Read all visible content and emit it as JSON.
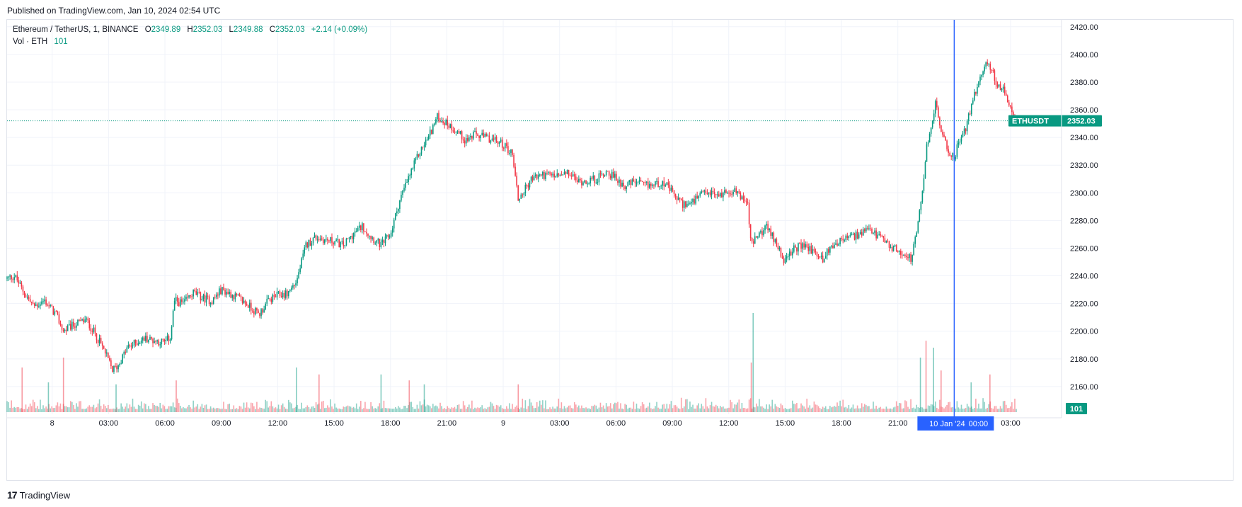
{
  "header": {
    "published": "Published on TradingView.com, Jan 10, 2024 02:54 UTC"
  },
  "legend": {
    "symbol": "Ethereum / TetherUS, 1, BINANCE",
    "open_label": "O",
    "open": "2349.89",
    "high_label": "H",
    "high": "2352.03",
    "low_label": "L",
    "low": "2349.88",
    "close_label": "C",
    "close": "2352.03",
    "change": "+2.14 (+0.09%)",
    "volume_label": "Vol · ETH",
    "volume": "101"
  },
  "footer": {
    "brand": "TradingView",
    "logo_mark": "17"
  },
  "colors": {
    "up": "#089981",
    "down": "#f23645",
    "crosshair": "#2962ff",
    "grid": "#f0f3fa",
    "axis_text": "#131722"
  },
  "chart_data": {
    "type": "candlestick",
    "symbol": "ETHUSDT",
    "ylim": [
      2140,
      2425
    ],
    "y_ticks": [
      "2420.00",
      "2400.00",
      "2380.00",
      "2360.00",
      "2340.00",
      "2320.00",
      "2300.00",
      "2280.00",
      "2260.00",
      "2240.00",
      "2220.00",
      "2200.00",
      "2180.00",
      "2160.00"
    ],
    "x_ticks": [
      {
        "hour": 3,
        "label": "8"
      },
      {
        "hour": 6,
        "label": "03:00"
      },
      {
        "hour": 9,
        "label": "06:00"
      },
      {
        "hour": 12,
        "label": "09:00"
      },
      {
        "hour": 15,
        "label": "12:00"
      },
      {
        "hour": 18,
        "label": "15:00"
      },
      {
        "hour": 21,
        "label": "18:00"
      },
      {
        "hour": 24,
        "label": "21:00"
      },
      {
        "hour": 27,
        "label": "9"
      },
      {
        "hour": 30,
        "label": "03:00"
      },
      {
        "hour": 33,
        "label": "06:00"
      },
      {
        "hour": 36,
        "label": "09:00"
      },
      {
        "hour": 39,
        "label": "12:00"
      },
      {
        "hour": 42,
        "label": "15:00"
      },
      {
        "hour": 45,
        "label": "18:00"
      },
      {
        "hour": 48,
        "label": "21:00"
      },
      {
        "hour": 54,
        "label": "03:00"
      }
    ],
    "xlim_hours": [
      0.6,
      54.3
    ],
    "last_price": 2352.03,
    "last_price_label": "ETHUSDT",
    "last_price_text": "2352.03",
    "volume_last": "101",
    "crosshair": {
      "hour": 51,
      "label_date": "10 Jan '24",
      "label_time": "00:00"
    },
    "price_path": [
      [
        0.6,
        2238
      ],
      [
        1.0,
        2240
      ],
      [
        1.5,
        2228
      ],
      [
        2.0,
        2218
      ],
      [
        2.6,
        2222
      ],
      [
        3.2,
        2212
      ],
      [
        3.6,
        2200
      ],
      [
        4.2,
        2205
      ],
      [
        4.8,
        2208
      ],
      [
        5.3,
        2198
      ],
      [
        5.8,
        2185
      ],
      [
        6.2,
        2172
      ],
      [
        6.5,
        2175
      ],
      [
        7.0,
        2188
      ],
      [
        7.5,
        2192
      ],
      [
        8.0,
        2195
      ],
      [
        8.5,
        2193
      ],
      [
        9.0,
        2192
      ],
      [
        9.3,
        2196
      ],
      [
        9.5,
        2222
      ],
      [
        10.0,
        2220
      ],
      [
        10.5,
        2228
      ],
      [
        11.0,
        2224
      ],
      [
        11.5,
        2222
      ],
      [
        12.0,
        2230
      ],
      [
        12.5,
        2227
      ],
      [
        13.0,
        2223
      ],
      [
        13.5,
        2218
      ],
      [
        14.0,
        2212
      ],
      [
        14.5,
        2222
      ],
      [
        15.0,
        2226
      ],
      [
        15.5,
        2227
      ],
      [
        16.0,
        2236
      ],
      [
        16.5,
        2262
      ],
      [
        17.0,
        2268
      ],
      [
        17.5,
        2266
      ],
      [
        18.0,
        2265
      ],
      [
        18.5,
        2262
      ],
      [
        19.0,
        2270
      ],
      [
        19.5,
        2276
      ],
      [
        20.0,
        2268
      ],
      [
        20.5,
        2262
      ],
      [
        21.0,
        2270
      ],
      [
        21.5,
        2295
      ],
      [
        22.0,
        2312
      ],
      [
        22.5,
        2328
      ],
      [
        23.0,
        2340
      ],
      [
        23.5,
        2355
      ],
      [
        24.0,
        2350
      ],
      [
        24.5,
        2345
      ],
      [
        25.0,
        2338
      ],
      [
        25.5,
        2342
      ],
      [
        26.0,
        2340
      ],
      [
        26.5,
        2338
      ],
      [
        27.0,
        2335
      ],
      [
        27.5,
        2328
      ],
      [
        27.8,
        2295
      ],
      [
        28.5,
        2310
      ],
      [
        29.0,
        2313
      ],
      [
        30.0,
        2312
      ],
      [
        30.5,
        2314
      ],
      [
        31.0,
        2308
      ],
      [
        32.0,
        2310
      ],
      [
        32.5,
        2316
      ],
      [
        33.0,
        2310
      ],
      [
        33.5,
        2305
      ],
      [
        34.0,
        2308
      ],
      [
        34.5,
        2305
      ],
      [
        35.0,
        2306
      ],
      [
        35.5,
        2308
      ],
      [
        36.0,
        2300
      ],
      [
        36.5,
        2292
      ],
      [
        37.0,
        2292
      ],
      [
        37.5,
        2298
      ],
      [
        38.0,
        2300
      ],
      [
        38.5,
        2298
      ],
      [
        39.0,
        2302
      ],
      [
        39.5,
        2300
      ],
      [
        40.0,
        2292
      ],
      [
        40.2,
        2262
      ],
      [
        40.6,
        2270
      ],
      [
        41.0,
        2275
      ],
      [
        41.5,
        2265
      ],
      [
        42.0,
        2250
      ],
      [
        42.5,
        2260
      ],
      [
        43.0,
        2262
      ],
      [
        43.5,
        2258
      ],
      [
        44.0,
        2252
      ],
      [
        44.5,
        2262
      ],
      [
        45.0,
        2266
      ],
      [
        45.5,
        2268
      ],
      [
        46.0,
        2270
      ],
      [
        46.5,
        2273
      ],
      [
        47.0,
        2268
      ],
      [
        47.5,
        2262
      ],
      [
        48.0,
        2258
      ],
      [
        48.5,
        2255
      ],
      [
        48.7,
        2252
      ],
      [
        49.0,
        2270
      ],
      [
        49.3,
        2300
      ],
      [
        49.5,
        2330
      ],
      [
        49.8,
        2350
      ],
      [
        50.0,
        2365
      ],
      [
        50.3,
        2345
      ],
      [
        50.6,
        2332
      ],
      [
        51.0,
        2325
      ],
      [
        51.3,
        2340
      ],
      [
        51.6,
        2345
      ],
      [
        52.0,
        2368
      ],
      [
        52.4,
        2385
      ],
      [
        52.8,
        2395
      ],
      [
        53.0,
        2388
      ],
      [
        53.3,
        2378
      ],
      [
        53.6,
        2374
      ],
      [
        54.0,
        2360
      ],
      [
        54.3,
        2352
      ]
    ],
    "volume_spikes": [
      {
        "hour": 1.4,
        "v": 0.45
      },
      {
        "hour": 2.8,
        "v": 0.3
      },
      {
        "hour": 3.6,
        "v": 0.55
      },
      {
        "hour": 6.4,
        "v": 0.28
      },
      {
        "hour": 9.6,
        "v": 0.32
      },
      {
        "hour": 16.0,
        "v": 0.45
      },
      {
        "hour": 17.2,
        "v": 0.38
      },
      {
        "hour": 20.5,
        "v": 0.38
      },
      {
        "hour": 22.0,
        "v": 0.32
      },
      {
        "hour": 22.8,
        "v": 0.28
      },
      {
        "hour": 27.8,
        "v": 0.28
      },
      {
        "hour": 40.3,
        "v": 1.0
      },
      {
        "hour": 40.2,
        "v": 0.5
      },
      {
        "hour": 49.2,
        "v": 0.55
      },
      {
        "hour": 49.5,
        "v": 0.72
      },
      {
        "hour": 49.9,
        "v": 0.65
      },
      {
        "hour": 50.3,
        "v": 0.42
      },
      {
        "hour": 51.9,
        "v": 0.3
      },
      {
        "hour": 52.9,
        "v": 0.38
      }
    ]
  }
}
